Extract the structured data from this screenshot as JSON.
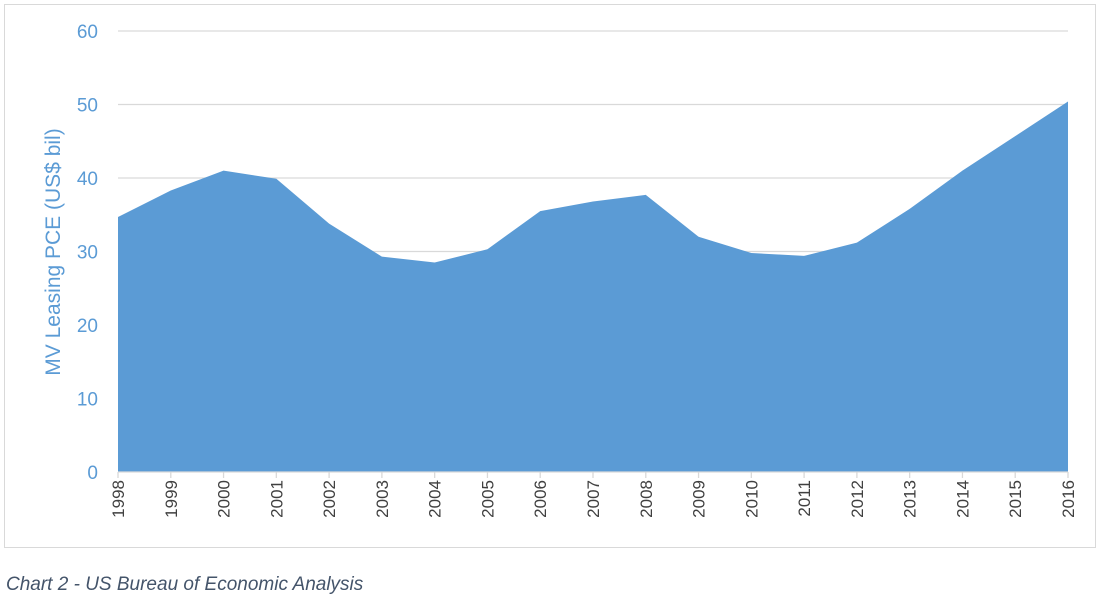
{
  "caption": "Chart 2 - US Bureau of Economic Analysis",
  "chart_data": {
    "type": "area",
    "title": "",
    "xlabel": "",
    "ylabel": "MV Leasing PCE (US$ bil)",
    "ylim": [
      0,
      60
    ],
    "yticks": [
      0,
      10,
      20,
      30,
      40,
      50,
      60
    ],
    "grid": true,
    "categories": [
      "1998",
      "1999",
      "2000",
      "2001",
      "2002",
      "2003",
      "2004",
      "2005",
      "2006",
      "2007",
      "2008",
      "2009",
      "2010",
      "2011",
      "2012",
      "2013",
      "2014",
      "2015",
      "2016"
    ],
    "values": [
      34.7,
      38.3,
      41.0,
      39.9,
      33.8,
      29.3,
      28.5,
      30.3,
      35.5,
      36.8,
      37.7,
      32.0,
      29.8,
      29.4,
      31.2,
      35.8,
      41.0,
      45.7,
      50.4
    ],
    "colors": {
      "area": "#5b9bd5",
      "axis_text": "#5b9bd5",
      "tick_text": "#404040",
      "grid": "#d9d9d9"
    }
  }
}
